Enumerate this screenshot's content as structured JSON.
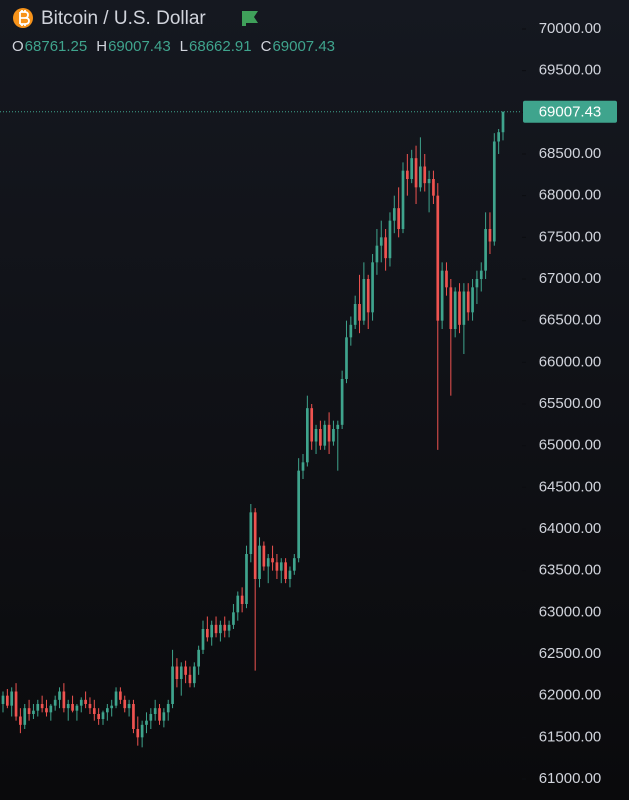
{
  "chart_data": {
    "type": "candlestick",
    "title": "Bitcoin / U.S. Dollar",
    "ohlc_header": [
      {
        "label": "O",
        "value": 68761.25
      },
      {
        "label": "H",
        "value": 69007.43
      },
      {
        "label": "L",
        "value": 68662.91
      },
      {
        "label": "C",
        "value": 69007.43
      }
    ],
    "last_price": 69007.43,
    "up_color": "#3fa48d",
    "down_color": "#ef5350",
    "ylim": [
      60748,
      70348
    ],
    "yticks": [
      {
        "value": 61000,
        "label": "61000.00"
      },
      {
        "value": 61500,
        "label": "61500.00"
      },
      {
        "value": 62000,
        "label": "62000.00"
      },
      {
        "value": 62500,
        "label": "62500.00"
      },
      {
        "value": 63000,
        "label": "63000.00"
      },
      {
        "value": 63500,
        "label": "63500.00"
      },
      {
        "value": 64000,
        "label": "64000.00"
      },
      {
        "value": 64500,
        "label": "64500.00"
      },
      {
        "value": 65000,
        "label": "65000.00"
      },
      {
        "value": 65500,
        "label": "65500.00"
      },
      {
        "value": 66000,
        "label": "66000.00"
      },
      {
        "value": 66500,
        "label": "66500.00"
      },
      {
        "value": 67000,
        "label": "67000.00"
      },
      {
        "value": 67500,
        "label": "67500.00"
      },
      {
        "value": 68000,
        "label": "68000.00"
      },
      {
        "value": 68500,
        "label": "68500.00"
      },
      {
        "value": 69000,
        "label": "69000.00"
      },
      {
        "value": 69500,
        "label": "69500.00"
      },
      {
        "value": 70000,
        "label": "70000.00"
      }
    ],
    "candles": [
      [
        61900,
        62050,
        61800,
        62000
      ],
      [
        62000,
        62080,
        61850,
        61880
      ],
      [
        61880,
        62100,
        61750,
        62050
      ],
      [
        62050,
        62150,
        61700,
        61750
      ],
      [
        61750,
        61850,
        61550,
        61650
      ],
      [
        61650,
        61900,
        61600,
        61850
      ],
      [
        61850,
        61950,
        61700,
        61780
      ],
      [
        61780,
        61900,
        61720,
        61820
      ],
      [
        61820,
        61950,
        61750,
        61900
      ],
      [
        61900,
        62000,
        61800,
        61850
      ],
      [
        61850,
        61950,
        61750,
        61800
      ],
      [
        61800,
        61900,
        61700,
        61880
      ],
      [
        61880,
        62000,
        61820,
        61950
      ],
      [
        61950,
        62100,
        61850,
        62050
      ],
      [
        62050,
        62150,
        61800,
        61850
      ],
      [
        61850,
        61950,
        61700,
        61900
      ],
      [
        61900,
        62000,
        61800,
        61820
      ],
      [
        61820,
        61900,
        61700,
        61880
      ],
      [
        61880,
        61980,
        61800,
        61950
      ],
      [
        61950,
        62050,
        61850,
        61900
      ],
      [
        61900,
        61980,
        61780,
        61850
      ],
      [
        61850,
        61950,
        61700,
        61780
      ],
      [
        61780,
        61850,
        61650,
        61720
      ],
      [
        61720,
        61820,
        61650,
        61800
      ],
      [
        61800,
        61900,
        61700,
        61850
      ],
      [
        61850,
        61950,
        61750,
        61880
      ],
      [
        61880,
        62100,
        61850,
        62050
      ],
      [
        62050,
        62100,
        61900,
        61950
      ],
      [
        61950,
        62000,
        61800,
        61850
      ],
      [
        61850,
        61950,
        61750,
        61900
      ],
      [
        61900,
        61950,
        61550,
        61600
      ],
      [
        61600,
        61750,
        61400,
        61500
      ],
      [
        61500,
        61700,
        61380,
        61650
      ],
      [
        61650,
        61800,
        61550,
        61700
      ],
      [
        61700,
        61850,
        61600,
        61780
      ],
      [
        61780,
        61950,
        61700,
        61850
      ],
      [
        61850,
        61900,
        61650,
        61700
      ],
      [
        61700,
        61850,
        61620,
        61800
      ],
      [
        61800,
        61950,
        61700,
        61900
      ],
      [
        61900,
        62550,
        61850,
        62350
      ],
      [
        62350,
        62450,
        62100,
        62200
      ],
      [
        62200,
        62400,
        62000,
        62350
      ],
      [
        62350,
        62420,
        62150,
        62250
      ],
      [
        62250,
        62350,
        62100,
        62150
      ],
      [
        62150,
        62400,
        62100,
        62350
      ],
      [
        62350,
        62600,
        62250,
        62550
      ],
      [
        62550,
        62900,
        62500,
        62800
      ],
      [
        62800,
        62950,
        62650,
        62700
      ],
      [
        62700,
        62900,
        62600,
        62850
      ],
      [
        62850,
        62950,
        62700,
        62750
      ],
      [
        62750,
        62900,
        62650,
        62850
      ],
      [
        62850,
        62950,
        62700,
        62780
      ],
      [
        62780,
        62900,
        62700,
        62850
      ],
      [
        62850,
        63100,
        62800,
        63000
      ],
      [
        63000,
        63250,
        62900,
        63200
      ],
      [
        63200,
        63300,
        63000,
        63100
      ],
      [
        63100,
        63800,
        63050,
        63700
      ],
      [
        63700,
        64300,
        63600,
        64200
      ],
      [
        64200,
        64250,
        62300,
        63400
      ],
      [
        63400,
        63900,
        63300,
        63800
      ],
      [
        63800,
        63850,
        63500,
        63550
      ],
      [
        63550,
        63700,
        63350,
        63650
      ],
      [
        63650,
        63800,
        63500,
        63600
      ],
      [
        63600,
        63700,
        63400,
        63500
      ],
      [
        63500,
        63650,
        63350,
        63600
      ],
      [
        63600,
        63650,
        63350,
        63400
      ],
      [
        63400,
        63550,
        63300,
        63500
      ],
      [
        63500,
        63700,
        63450,
        63650
      ],
      [
        63650,
        64850,
        63600,
        64700
      ],
      [
        64700,
        64900,
        64600,
        64800
      ],
      [
        64800,
        65600,
        64750,
        65450
      ],
      [
        65450,
        65500,
        64950,
        65050
      ],
      [
        65050,
        65250,
        64900,
        65200
      ],
      [
        65200,
        65300,
        64950,
        65000
      ],
      [
        65000,
        65300,
        64950,
        65250
      ],
      [
        65250,
        65400,
        64900,
        65050
      ],
      [
        65050,
        65300,
        65000,
        65200
      ],
      [
        65200,
        65300,
        64700,
        65250
      ],
      [
        65250,
        65900,
        65200,
        65800
      ],
      [
        65800,
        66500,
        65750,
        66300
      ],
      [
        66300,
        66550,
        66200,
        66450
      ],
      [
        66450,
        66800,
        66400,
        66700
      ],
      [
        66700,
        67050,
        66350,
        66500
      ],
      [
        66500,
        67200,
        66450,
        67000
      ],
      [
        67000,
        67050,
        66400,
        66600
      ],
      [
        66600,
        67300,
        66500,
        67200
      ],
      [
        67200,
        67600,
        67050,
        67400
      ],
      [
        67400,
        67700,
        67200,
        67500
      ],
      [
        67500,
        67600,
        67100,
        67250
      ],
      [
        67250,
        67800,
        67150,
        67700
      ],
      [
        67700,
        68000,
        67550,
        67850
      ],
      [
        67850,
        68100,
        67500,
        67600
      ],
      [
        67600,
        68400,
        67550,
        68300
      ],
      [
        68300,
        68500,
        68000,
        68200
      ],
      [
        68200,
        68550,
        68150,
        68450
      ],
      [
        68450,
        68600,
        67900,
        68100
      ],
      [
        68100,
        68700,
        68050,
        68350
      ],
      [
        68350,
        68500,
        68050,
        68150
      ],
      [
        68150,
        68300,
        67800,
        68200
      ],
      [
        68200,
        68300,
        67900,
        68000
      ],
      [
        68000,
        68150,
        64950,
        66500
      ],
      [
        66500,
        67200,
        66400,
        67100
      ],
      [
        67100,
        67200,
        66800,
        66900
      ],
      [
        66900,
        67000,
        65600,
        66400
      ],
      [
        66400,
        66900,
        66300,
        66850
      ],
      [
        66850,
        66950,
        66350,
        66450
      ],
      [
        66450,
        66950,
        66100,
        66850
      ],
      [
        66850,
        66950,
        66500,
        66600
      ],
      [
        66600,
        67000,
        66500,
        66900
      ],
      [
        66900,
        67100,
        66700,
        67000
      ],
      [
        67000,
        67200,
        66850,
        67100
      ],
      [
        67100,
        67800,
        67000,
        67600
      ],
      [
        67600,
        67800,
        67300,
        67450
      ],
      [
        67450,
        68750,
        67400,
        68650
      ],
      [
        68650,
        68800,
        68500,
        68761.25
      ],
      [
        68761.25,
        69007.43,
        68662.91,
        69007.43
      ]
    ]
  }
}
